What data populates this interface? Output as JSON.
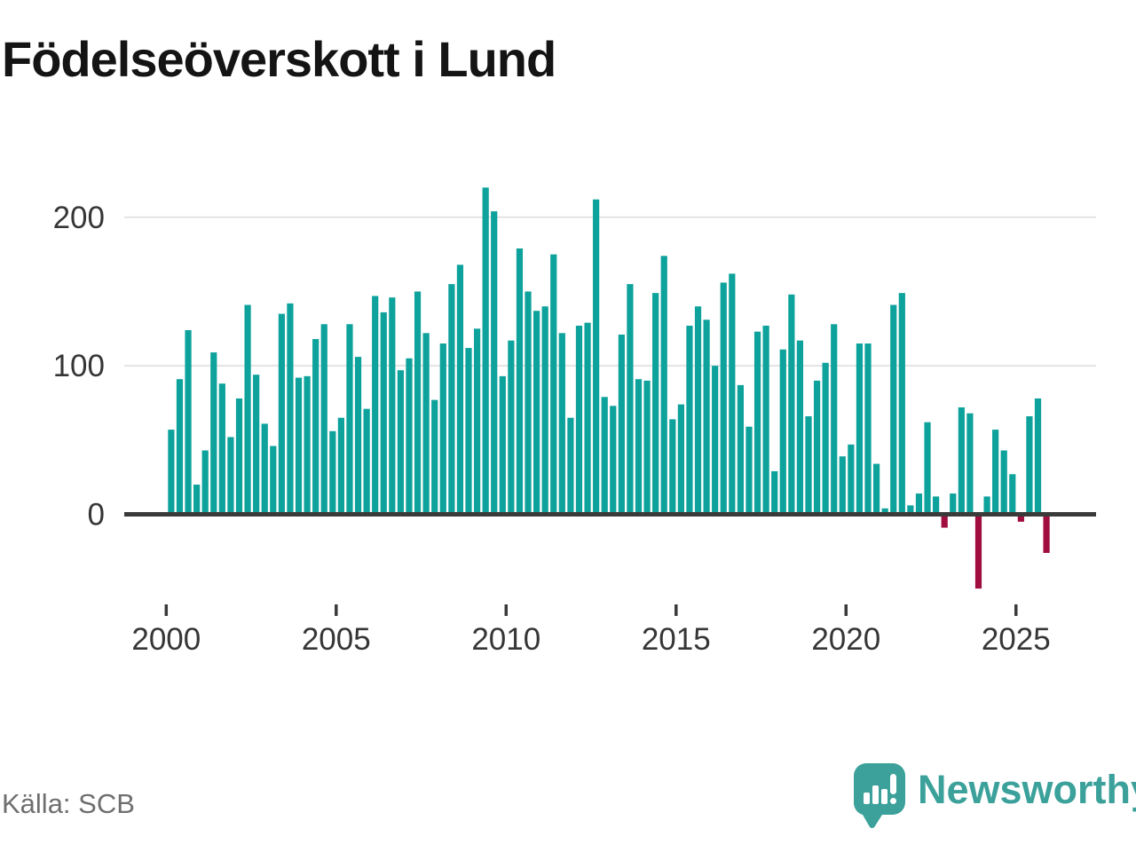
{
  "title": "Födelseöverskott i Lund",
  "source_note": "Källa: SCB",
  "brand": {
    "name": "Newsworthy"
  },
  "colors": {
    "bar_positive": "#0da29b",
    "bar_negative": "#a00d3e",
    "gridline": "#e3e3e3",
    "axis_line": "#3a3a3a",
    "axis_text": "#363636",
    "title_text": "#141414",
    "source_text": "#6f6f6f",
    "brand_teal": "#3ba19a"
  },
  "chart_data": {
    "type": "bar",
    "title": "Födelseöverskott i Lund",
    "xlabel": "",
    "ylabel": "",
    "frequency": "quarterly",
    "start_year": 2000,
    "series": [
      {
        "year": 2000,
        "values": [
          57,
          91,
          124,
          20
        ]
      },
      {
        "year": 2001,
        "values": [
          43,
          109,
          88,
          52
        ]
      },
      {
        "year": 2002,
        "values": [
          78,
          141,
          94,
          61
        ]
      },
      {
        "year": 2003,
        "values": [
          46,
          135,
          142,
          92
        ]
      },
      {
        "year": 2004,
        "values": [
          93,
          118,
          128,
          56
        ]
      },
      {
        "year": 2005,
        "values": [
          65,
          128,
          106,
          71
        ]
      },
      {
        "year": 2006,
        "values": [
          147,
          136,
          146,
          97
        ]
      },
      {
        "year": 2007,
        "values": [
          105,
          150,
          122,
          77
        ]
      },
      {
        "year": 2008,
        "values": [
          115,
          155,
          168,
          112
        ]
      },
      {
        "year": 2009,
        "values": [
          125,
          220,
          204,
          93
        ]
      },
      {
        "year": 2010,
        "values": [
          117,
          179,
          150,
          137
        ]
      },
      {
        "year": 2011,
        "values": [
          140,
          175,
          122,
          65
        ]
      },
      {
        "year": 2012,
        "values": [
          127,
          129,
          212,
          79
        ]
      },
      {
        "year": 2013,
        "values": [
          73,
          121,
          155,
          91
        ]
      },
      {
        "year": 2014,
        "values": [
          90,
          149,
          174,
          64
        ]
      },
      {
        "year": 2015,
        "values": [
          74,
          127,
          140,
          131
        ]
      },
      {
        "year": 2016,
        "values": [
          100,
          156,
          162,
          87
        ]
      },
      {
        "year": 2017,
        "values": [
          59,
          123,
          127,
          29
        ]
      },
      {
        "year": 2018,
        "values": [
          111,
          148,
          117,
          66
        ]
      },
      {
        "year": 2019,
        "values": [
          90,
          102,
          128,
          39
        ]
      },
      {
        "year": 2020,
        "values": [
          47,
          115,
          115,
          34
        ]
      },
      {
        "year": 2021,
        "values": [
          4,
          141,
          149,
          6
        ]
      },
      {
        "year": 2022,
        "values": [
          14,
          62,
          12,
          -9
        ]
      },
      {
        "year": 2023,
        "values": [
          14,
          72,
          68,
          -50
        ]
      },
      {
        "year": 2024,
        "values": [
          12,
          57,
          43,
          27
        ]
      },
      {
        "year": 2025,
        "values": [
          -5,
          66,
          78,
          -26
        ]
      },
      {
        "year": 2026,
        "values": []
      }
    ],
    "y_ticks": [
      0,
      100,
      200
    ],
    "x_tick_labels": [
      "2000",
      "2005",
      "2010",
      "2015",
      "2020",
      "2025"
    ],
    "ylim": [
      -60,
      230
    ],
    "grid": "horizontal",
    "legend": "none",
    "positive_color": "#0da29b",
    "negative_color": "#a00d3e"
  }
}
